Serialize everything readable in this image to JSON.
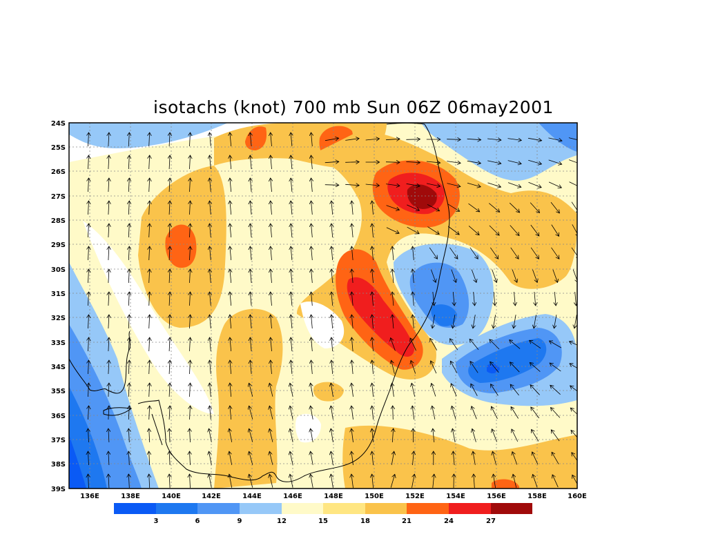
{
  "title": "isotachs (knot) 700 mb Sun 06Z 06may2001",
  "lat_labels": [
    "24S",
    "25S",
    "26S",
    "27S",
    "28S",
    "29S",
    "30S",
    "31S",
    "32S",
    "33S",
    "34S",
    "35S",
    "36S",
    "37S",
    "38S",
    "39S"
  ],
  "lon_labels": [
    "136E",
    "138E",
    "140E",
    "142E",
    "144E",
    "146E",
    "148E",
    "150E",
    "152E",
    "154E",
    "156E",
    "158E",
    "160E"
  ],
  "colorbar": {
    "colors": [
      "#0a5af5",
      "#1e78f0",
      "#5096f5",
      "#96c8f8",
      "#ffffff",
      "#fffac8",
      "#ffe682",
      "#fac34b",
      "#ff6414",
      "#f01e1e",
      "#a00a0a"
    ],
    "labels": [
      "3",
      "6",
      "9",
      "12",
      "15",
      "18",
      "21",
      "24",
      "27"
    ]
  },
  "palette": {
    "dark_blue": "#0a5af5",
    "blue": "#1e78f0",
    "mid_blue": "#5096f5",
    "light_blue": "#96c8f8",
    "pale_yellow": "#fffac8",
    "yellow": "#ffe682",
    "orange": "#fac34b",
    "dark_orange": "#ff6414",
    "red": "#f01e1e",
    "dark_red": "#a00a0a"
  }
}
